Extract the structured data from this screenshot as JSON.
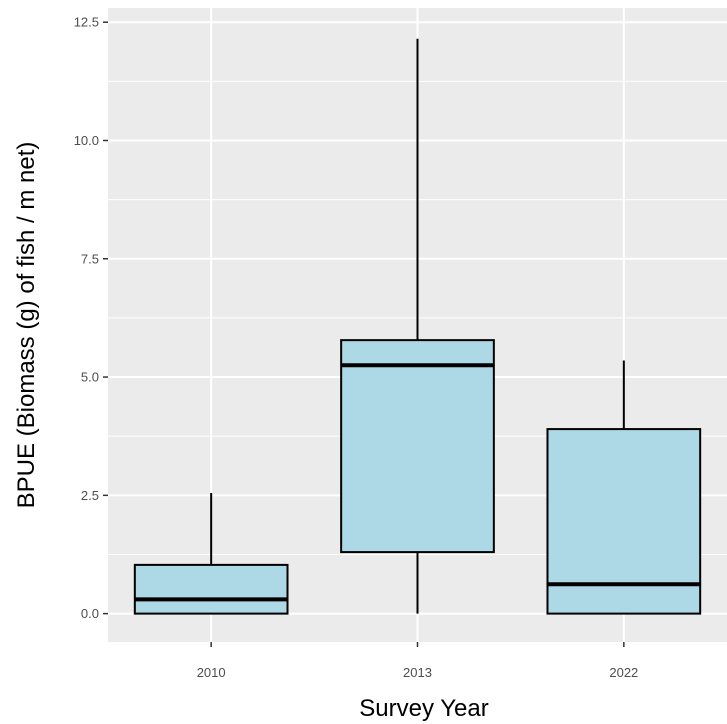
{
  "chart_data": {
    "type": "box",
    "title": "",
    "xlabel": "Survey Year",
    "ylabel": "BPUE (Biomass (g) of fish / m net)",
    "ylim": [
      -0.6,
      12.8
    ],
    "y_ticks": [
      0.0,
      2.5,
      5.0,
      7.5,
      10.0,
      12.5
    ],
    "y_tick_labels": [
      "0.0",
      "2.5",
      "5.0",
      "7.5",
      "10.0",
      "12.5"
    ],
    "categories": [
      "2010",
      "2013",
      "2022"
    ],
    "boxes": [
      {
        "category": "2010",
        "min": 0.0,
        "q1": 0.0,
        "median": 0.3,
        "q3": 1.03,
        "max": 2.55
      },
      {
        "category": "2013",
        "min": 0.0,
        "q1": 1.3,
        "median": 5.25,
        "q3": 5.78,
        "max": 12.15
      },
      {
        "category": "2022",
        "min": 0.0,
        "q1": 0.0,
        "median": 0.62,
        "q3": 3.9,
        "max": 5.35
      }
    ],
    "colors": {
      "panel_bg": "#ebebeb",
      "grid": "#ffffff",
      "box_fill": "#add8e6",
      "box_stroke": "#000000"
    },
    "grid": true,
    "legend": "none"
  }
}
